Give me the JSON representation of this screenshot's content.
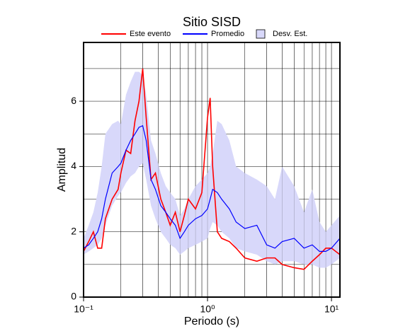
{
  "chart_data": {
    "type": "line",
    "title": "Sitio SISD",
    "x_label": "Periodo (s)",
    "y_label": "Amplitud",
    "xscale": "log",
    "xlim": [
      0.1,
      11.7
    ],
    "ylim": [
      0,
      7.8
    ],
    "xticks": [
      {
        "value": 0.1,
        "label": "10⁻¹"
      },
      {
        "value": 1,
        "label": "10⁰"
      },
      {
        "value": 10,
        "label": "10¹"
      }
    ],
    "xgrid": [
      0.2,
      0.3,
      0.4,
      0.5,
      0.6,
      0.7,
      0.8,
      0.9,
      1,
      2,
      3,
      4,
      5,
      6,
      7,
      8,
      9,
      10
    ],
    "yticks": [
      0,
      2,
      4,
      6
    ],
    "ygrid": [
      1,
      2,
      3,
      4,
      5,
      6,
      7
    ],
    "x": [
      0.1,
      0.11,
      0.12,
      0.13,
      0.14,
      0.15,
      0.17,
      0.19,
      0.2,
      0.22,
      0.24,
      0.26,
      0.28,
      0.3,
      0.32,
      0.35,
      0.38,
      0.42,
      0.46,
      0.5,
      0.55,
      0.6,
      0.65,
      0.7,
      0.8,
      0.9,
      1.0,
      1.05,
      1.1,
      1.2,
      1.3,
      1.5,
      1.7,
      2,
      2.5,
      3,
      3.5,
      4,
      5,
      6,
      7,
      8,
      9,
      10,
      11.7
    ],
    "series": [
      {
        "name": "Este evento",
        "color": "#ff0000",
        "values": [
          1.4,
          1.7,
          2.0,
          1.5,
          1.5,
          2.4,
          3.0,
          3.3,
          3.8,
          4.5,
          4.4,
          5.4,
          6.0,
          7.0,
          5.5,
          3.6,
          3.8,
          3.0,
          2.6,
          2.2,
          2.6,
          2.0,
          2.5,
          3.0,
          2.7,
          3.2,
          5.5,
          6.1,
          4.0,
          2.0,
          1.8,
          1.7,
          1.5,
          1.2,
          1.1,
          1.2,
          1.2,
          1.0,
          0.9,
          0.85,
          1.1,
          1.3,
          1.5,
          1.5,
          1.3
        ]
      },
      {
        "name": "Promedio",
        "color": "#0000ff",
        "values": [
          1.5,
          1.6,
          1.8,
          2.0,
          2.4,
          3.0,
          3.8,
          4.0,
          4.1,
          4.5,
          4.8,
          5.0,
          5.2,
          5.25,
          4.8,
          3.6,
          3.3,
          2.8,
          2.6,
          2.4,
          2.2,
          1.8,
          2.0,
          2.2,
          2.4,
          2.5,
          2.7,
          3.0,
          3.3,
          3.2,
          3.0,
          2.7,
          2.3,
          2.1,
          2.2,
          1.6,
          1.5,
          1.7,
          1.8,
          1.5,
          1.6,
          1.4,
          1.4,
          1.5,
          1.8
        ]
      }
    ],
    "band": {
      "name": "Desv. Est.",
      "color": "#d8d8fa",
      "lower": [
        1.3,
        1.4,
        1.5,
        1.6,
        1.8,
        2.2,
        2.8,
        3.1,
        3.2,
        3.5,
        3.7,
        3.8,
        4.0,
        4.1,
        3.6,
        2.8,
        2.4,
        2.0,
        1.8,
        1.6,
        1.5,
        1.3,
        1.4,
        1.5,
        1.6,
        1.7,
        1.8,
        2.1,
        2.3,
        2.2,
        2.0,
        1.8,
        1.5,
        1.4,
        1.3,
        1.1,
        1.0,
        1.1,
        1.1,
        1.0,
        1.0,
        0.9,
        0.9,
        1.0,
        1.2
      ],
      "upper": [
        1.8,
        2.2,
        2.6,
        3.2,
        4.0,
        5.0,
        5.3,
        5.4,
        5.3,
        6.2,
        6.6,
        6.9,
        6.9,
        6.8,
        6.2,
        4.8,
        4.4,
        3.8,
        3.4,
        3.2,
        3.0,
        2.5,
        2.7,
        3.0,
        3.4,
        3.6,
        3.8,
        4.0,
        4.4,
        5.4,
        5.3,
        4.8,
        4.0,
        3.8,
        3.6,
        3.4,
        3.0,
        4.0,
        3.4,
        2.6,
        3.3,
        2.3,
        2.0,
        2.2,
        2.5
      ]
    }
  }
}
